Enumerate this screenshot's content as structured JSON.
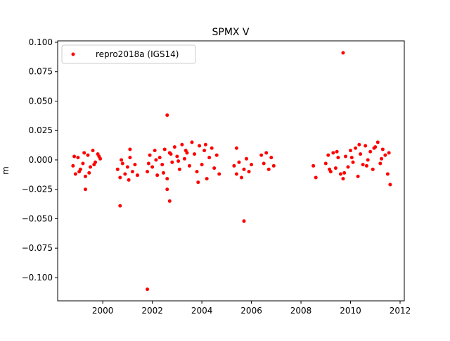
{
  "chart_data": {
    "type": "scatter",
    "title": "SPMX V",
    "ylabel": "m",
    "x": [
      1998.8,
      1998.9,
      1999.0,
      1999.1,
      1999.2,
      1999.3,
      1999.4,
      1999.5,
      1999.6,
      1999.7,
      1999.8,
      1999.9,
      1998.85,
      1999.05,
      1999.25,
      1999.45,
      1999.65,
      1999.85,
      2000.6,
      2000.7,
      2000.8,
      2000.9,
      2001.0,
      2001.1,
      2001.2,
      2001.3,
      2001.4,
      2000.75,
      2001.05,
      2001.8,
      2001.9,
      2002.0,
      2002.1,
      2002.2,
      2002.3,
      2002.4,
      2002.5,
      2002.6,
      2002.7,
      2002.8,
      2002.9,
      2003.0,
      2003.1,
      2003.2,
      2003.3,
      2003.4,
      2003.5,
      2003.6,
      2001.85,
      2002.15,
      2002.45,
      2002.75,
      2003.05,
      2003.35,
      2003.7,
      2003.8,
      2003.9,
      2004.0,
      2004.1,
      2004.2,
      2004.3,
      2004.4,
      2004.5,
      2004.6,
      2004.7,
      2003.85,
      2004.15,
      2005.3,
      2005.4,
      2005.5,
      2005.6,
      2005.7,
      2005.8,
      2005.9,
      2006.0,
      2006.4,
      2006.5,
      2006.6,
      2006.7,
      2006.8,
      2006.9,
      2008.5,
      2008.6,
      2009.0,
      2009.1,
      2009.2,
      2009.3,
      2009.4,
      2009.5,
      2009.6,
      2009.7,
      2009.8,
      2009.9,
      2010.0,
      2010.1,
      2010.2,
      2010.3,
      2010.4,
      2010.5,
      2010.6,
      2010.7,
      2010.8,
      2010.9,
      2011.0,
      2011.1,
      2011.2,
      2011.3,
      2011.4,
      2011.5,
      2011.6,
      2009.15,
      2009.45,
      2009.75,
      2010.05,
      2010.35,
      2010.65,
      2010.95,
      2011.25,
      2011.55,
      1999.3,
      2000.7,
      2001.8,
      2002.6,
      2002.7,
      2002.6,
      2005.7,
      2009.7,
      2005.4,
      2001.1
    ],
    "series": [
      {
        "name": "repro2018a (IGS14)",
        "color": "#ff0000",
        "values": [
          -0.005,
          -0.012,
          0.002,
          -0.008,
          -0.003,
          -0.014,
          0.004,
          -0.006,
          0.008,
          -0.002,
          0.005,
          0.001,
          0.003,
          -0.01,
          0.006,
          -0.011,
          -0.004,
          0.003,
          -0.008,
          -0.015,
          -0.003,
          -0.012,
          -0.006,
          0.002,
          -0.01,
          -0.004,
          -0.013,
          0.0,
          -0.017,
          -0.01,
          0.004,
          -0.006,
          0.008,
          -0.013,
          0.002,
          -0.004,
          0.009,
          -0.016,
          0.006,
          -0.002,
          0.011,
          0.003,
          -0.008,
          0.013,
          0.001,
          0.006,
          -0.005,
          0.015,
          -0.003,
          0.0,
          -0.011,
          0.005,
          -0.001,
          0.008,
          0.005,
          -0.01,
          0.012,
          -0.004,
          0.008,
          -0.016,
          0.002,
          0.01,
          -0.007,
          0.004,
          -0.012,
          -0.019,
          0.013,
          -0.005,
          -0.012,
          -0.002,
          -0.015,
          -0.008,
          0.001,
          -0.01,
          -0.004,
          0.004,
          -0.003,
          0.006,
          -0.008,
          0.002,
          -0.005,
          -0.005,
          -0.015,
          -0.003,
          0.004,
          -0.01,
          0.006,
          -0.007,
          0.002,
          -0.012,
          -0.016,
          0.003,
          -0.006,
          0.008,
          -0.002,
          0.01,
          -0.014,
          0.005,
          -0.004,
          0.012,
          0.0,
          0.007,
          -0.008,
          0.011,
          0.015,
          -0.003,
          0.009,
          0.004,
          -0.012,
          -0.021,
          -0.008,
          0.007,
          -0.011,
          0.002,
          0.013,
          -0.005,
          0.01,
          0.001,
          0.006,
          -0.025,
          -0.039,
          -0.11,
          0.038,
          -0.035,
          -0.025,
          -0.052,
          0.091,
          0.01,
          0.009
        ]
      }
    ],
    "xlim": [
      1998.18,
      2012.17
    ],
    "xticks": [
      2000,
      2002,
      2004,
      2006,
      2008,
      2010,
      2012
    ],
    "ylim": [
      -0.1198,
      0.1012
    ],
    "yticks": [
      {
        "value": -0.1,
        "label": "−0.100"
      },
      {
        "value": -0.075,
        "label": "−0.075"
      },
      {
        "value": -0.05,
        "label": "−0.050"
      },
      {
        "value": -0.025,
        "label": "−0.025"
      },
      {
        "value": 0,
        "label": "0.000"
      },
      {
        "value": 0.025,
        "label": "0.025"
      },
      {
        "value": 0.05,
        "label": "0.050"
      },
      {
        "value": 0.075,
        "label": "0.075"
      },
      {
        "value": 0.1,
        "label": "0.100"
      }
    ],
    "legend": "upper left"
  }
}
